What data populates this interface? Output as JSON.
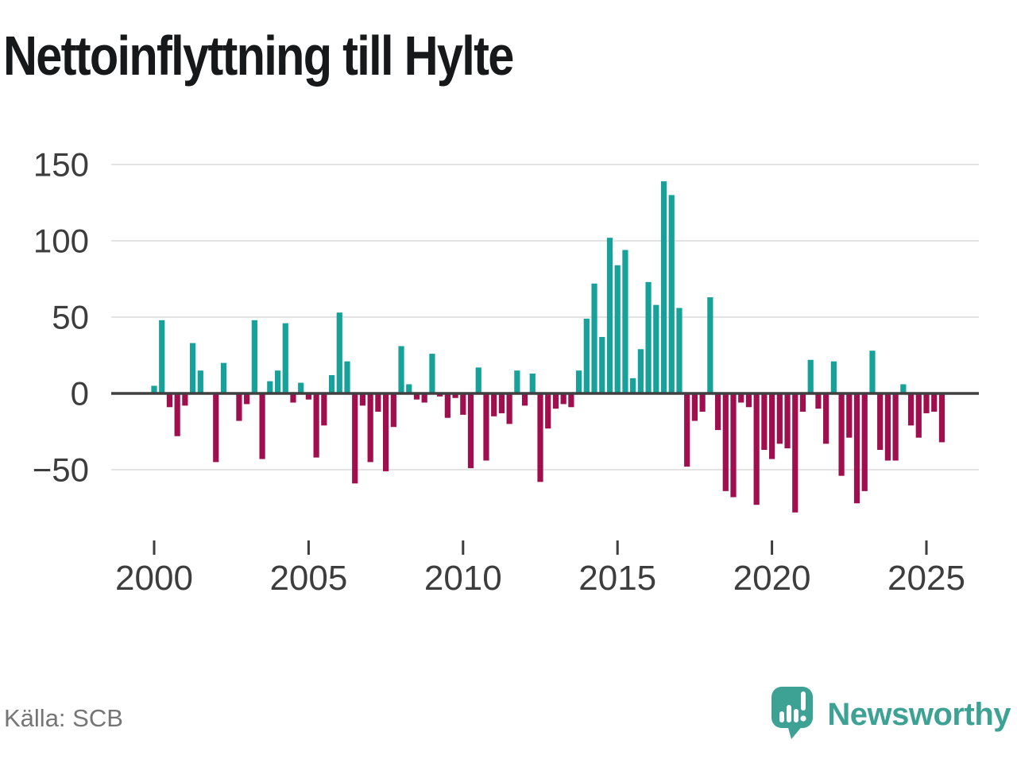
{
  "title": "Nettoinflyttning till Hylte",
  "source": "Källa: SCB",
  "branding": {
    "name": "Newsworthy",
    "icon": "speech-bubble-bar-chart-exclamation-icon",
    "color": "#3da294"
  },
  "colors": {
    "positive_bar": "#16a29b",
    "negative_bar": "#a00e4d",
    "title_text": "#16181a",
    "axis_text": "#3d3d3d",
    "gridline": "#e3e3e3",
    "zero_line": "#3f3f3f",
    "source_text": "#757575",
    "background": "#ffffff"
  },
  "chart_data": {
    "type": "bar",
    "title": "Nettoinflyttning till Hylte",
    "orientation": "vertical",
    "grid": "horizontal",
    "legend_position": "none",
    "x_axis": {
      "tick_years": [
        2000,
        2005,
        2010,
        2015,
        2020,
        2025
      ]
    },
    "y_axis": {
      "ticks": [
        150,
        100,
        50,
        0,
        -50
      ],
      "ylim": [
        -85,
        158
      ]
    },
    "period": "quarterly",
    "first_quarter": "2000 Q1",
    "last_quarter": "2025 Q3",
    "series_by_year": [
      {
        "year": 2000,
        "values": [
          5,
          48,
          -9,
          -28
        ]
      },
      {
        "year": 2001,
        "values": [
          -8,
          33,
          15,
          0
        ]
      },
      {
        "year": 2002,
        "values": [
          -45,
          20,
          0,
          -18
        ]
      },
      {
        "year": 2003,
        "values": [
          -7,
          48,
          -43,
          8
        ]
      },
      {
        "year": 2004,
        "values": [
          15,
          46,
          -6,
          7
        ]
      },
      {
        "year": 2005,
        "values": [
          -4,
          -42,
          -21,
          12
        ]
      },
      {
        "year": 2006,
        "values": [
          53,
          21,
          -59,
          -8
        ]
      },
      {
        "year": 2007,
        "values": [
          -45,
          -12,
          -51,
          -22
        ]
      },
      {
        "year": 2008,
        "values": [
          31,
          6,
          -4,
          -6
        ]
      },
      {
        "year": 2009,
        "values": [
          26,
          -2,
          -16,
          -3
        ]
      },
      {
        "year": 2010,
        "values": [
          -14,
          -49,
          17,
          -44
        ]
      },
      {
        "year": 2011,
        "values": [
          -15,
          -13,
          -20,
          15
        ]
      },
      {
        "year": 2012,
        "values": [
          -8,
          13,
          -58,
          -23
        ]
      },
      {
        "year": 2013,
        "values": [
          -10,
          -7,
          -9,
          15
        ]
      },
      {
        "year": 2014,
        "values": [
          49,
          72,
          37,
          102
        ]
      },
      {
        "year": 2015,
        "values": [
          84,
          94,
          10,
          29
        ]
      },
      {
        "year": 2016,
        "values": [
          73,
          58,
          139,
          130
        ]
      },
      {
        "year": 2017,
        "values": [
          56,
          -48,
          -18,
          -12
        ]
      },
      {
        "year": 2018,
        "values": [
          63,
          -24,
          -64,
          -68
        ]
      },
      {
        "year": 2019,
        "values": [
          -6,
          -9,
          -73,
          -37
        ]
      },
      {
        "year": 2020,
        "values": [
          -43,
          -33,
          -36,
          -78
        ]
      },
      {
        "year": 2021,
        "values": [
          -12,
          22,
          -10,
          -33
        ]
      },
      {
        "year": 2022,
        "values": [
          21,
          -54,
          -29,
          -72
        ]
      },
      {
        "year": 2023,
        "values": [
          -64,
          28,
          -37,
          -44
        ]
      },
      {
        "year": 2024,
        "values": [
          -44,
          6,
          -21,
          -29
        ]
      },
      {
        "year": 2025,
        "values": [
          -13,
          -12,
          -32
        ]
      }
    ]
  }
}
